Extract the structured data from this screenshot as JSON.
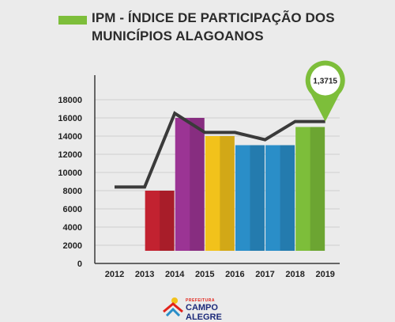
{
  "title": "IPM - ÍNDICE DE PARTICIPAÇÃO DOS MUNICÍPIOS ALAGOANOS",
  "colors": {
    "accent_green": "#7dbe3a",
    "line": "#3a3a3a",
    "axis": "#3a3a3a",
    "background": "#ebebeb"
  },
  "chart_data": {
    "type": "bar",
    "categories": [
      "2013",
      "2014",
      "2015",
      "2016",
      "2017",
      "2018"
    ],
    "values": [
      8000,
      16000,
      14000,
      13000,
      13000,
      15000
    ],
    "bar_colors": [
      "#c22230",
      "#9b3494",
      "#f2c21b",
      "#2a8ec8",
      "#2a8ec8",
      "#7dbe3a"
    ],
    "line_series": {
      "x": [
        "2012",
        "2013",
        "2014",
        "2015",
        "2016",
        "2017",
        "2018",
        "2019"
      ],
      "values": [
        8400,
        8400,
        16500,
        14400,
        14400,
        13600,
        15600,
        15600
      ]
    },
    "x_tick_labels": [
      "2012",
      "2013",
      "2014",
      "2015",
      "2016",
      "2017",
      "2018",
      "2019"
    ],
    "y_tick_labels": [
      "0",
      "2000",
      "4000",
      "6000",
      "8000",
      "10000",
      "12000",
      "14000",
      "16000",
      "18000"
    ],
    "ylim": [
      0,
      18000
    ],
    "grid": true,
    "annotation": {
      "label": "1,3715",
      "x": "2019",
      "value": 15600,
      "color": "#7dbe3a"
    }
  },
  "logo": {
    "sub": "PREFEITURA",
    "main": "CAMPO ALEGRE"
  }
}
